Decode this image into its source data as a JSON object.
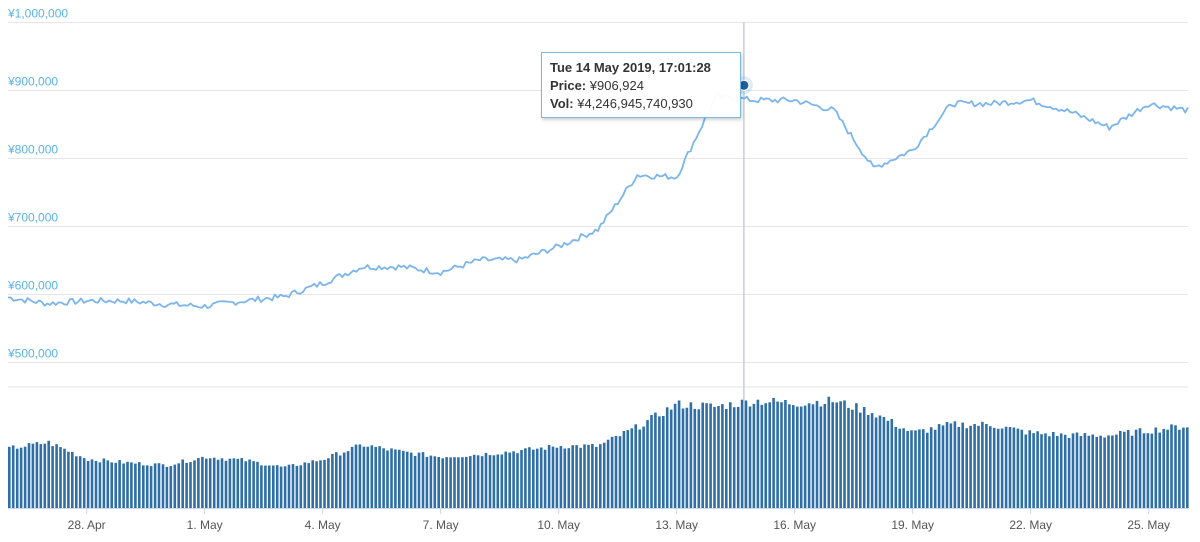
{
  "chart_data": {
    "type": "line",
    "price_axis": {
      "tick_labels": [
        "¥1,000,000",
        "¥900,000",
        "¥800,000",
        "¥700,000",
        "¥600,000",
        "¥500,000"
      ],
      "ylim": [
        500000,
        1000000
      ]
    },
    "x_tick_labels": [
      "28. Apr",
      "1. May",
      "4. May",
      "7. May",
      "10. May",
      "13. May",
      "16. May",
      "19. May",
      "22. May",
      "25. May"
    ],
    "x_range": [
      "2019-04-26",
      "2019-05-26"
    ],
    "grid": true,
    "series": [
      {
        "name": "Price",
        "color": "#7cb5ec",
        "x": [
          "2019-04-26",
          "2019-04-27",
          "2019-04-28",
          "2019-04-29",
          "2019-04-30",
          "2019-05-01",
          "2019-05-02",
          "2019-05-03",
          "2019-05-04",
          "2019-05-05",
          "2019-05-06",
          "2019-05-07",
          "2019-05-08",
          "2019-05-09",
          "2019-05-10",
          "2019-05-11",
          "2019-05-12",
          "2019-05-13",
          "2019-05-14",
          "2019-05-15",
          "2019-05-16",
          "2019-05-17",
          "2019-05-18",
          "2019-05-19",
          "2019-05-20",
          "2019-05-21",
          "2019-05-22",
          "2019-05-23",
          "2019-05-24",
          "2019-05-25",
          "2019-05-26"
        ],
        "values": [
          595000,
          586000,
          590000,
          590000,
          585000,
          582000,
          590000,
          596000,
          616000,
          640000,
          640000,
          632000,
          650000,
          650000,
          670000,
          695000,
          775000,
          772000,
          890000,
          885000,
          885000,
          870000,
          785000,
          812000,
          880000,
          880000,
          885000,
          868000,
          845000,
          880000,
          870000
        ]
      },
      {
        "name": "Vol",
        "color": "#2f6fa6",
        "x": [
          "2019-04-26",
          "2019-04-27",
          "2019-04-28",
          "2019-04-29",
          "2019-04-30",
          "2019-05-01",
          "2019-05-02",
          "2019-05-03",
          "2019-05-04",
          "2019-05-05",
          "2019-05-06",
          "2019-05-07",
          "2019-05-08",
          "2019-05-09",
          "2019-05-10",
          "2019-05-11",
          "2019-05-12",
          "2019-05-13",
          "2019-05-14",
          "2019-05-15",
          "2019-05-16",
          "2019-05-17",
          "2019-05-18",
          "2019-05-19",
          "2019-05-20",
          "2019-05-21",
          "2019-05-22",
          "2019-05-23",
          "2019-05-24",
          "2019-05-25",
          "2019-05-26"
        ],
        "values": [
          50,
          55,
          41,
          38,
          36,
          43,
          40,
          34,
          41,
          53,
          47,
          43,
          45,
          48,
          52,
          52,
          68,
          87,
          85,
          90,
          88,
          90,
          80,
          63,
          70,
          70,
          63,
          61,
          61,
          65,
          69
        ]
      }
    ],
    "tooltip": {
      "date": "Tue 14 May 2019, 17:01:28",
      "price_label": "Price:",
      "price_value": "¥906,924",
      "vol_label": "Vol:",
      "vol_value": "¥4,246,945,740,930",
      "hover_date": "2019-05-14T17:01:28",
      "hover_price": 906924
    }
  }
}
